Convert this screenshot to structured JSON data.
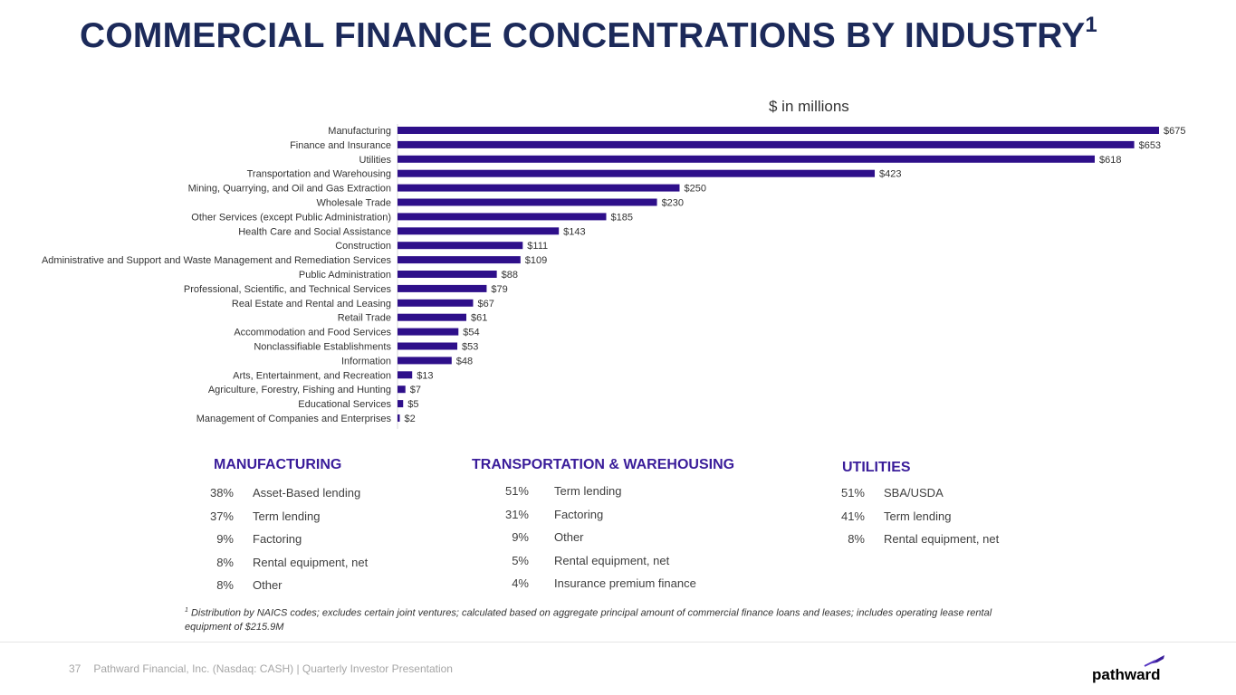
{
  "page": {
    "title": "COMMERCIAL FINANCE CONCENTRATIONS BY INDUSTRY",
    "title_sup": "1",
    "units_label": "$ in millions"
  },
  "chart_data": {
    "type": "bar",
    "orientation": "horizontal",
    "title": "",
    "units": "$ in millions",
    "categories": [
      "Manufacturing",
      "Finance and Insurance",
      "Utilities",
      "Transportation and Warehousing",
      "Mining, Quarrying, and Oil and Gas Extraction",
      "Wholesale Trade",
      "Other Services (except Public Administration)",
      "Health Care and Social Assistance",
      "Construction",
      "Administrative and Support and Waste Management and Remediation Services",
      "Public Administration",
      "Professional, Scientific, and Technical Services",
      "Real Estate and Rental and Leasing",
      "Retail Trade",
      "Accommodation and Food Services",
      "Nonclassifiable Establishments",
      "Information",
      "Arts, Entertainment, and Recreation",
      "Agriculture, Forestry, Fishing and Hunting",
      "Educational Services",
      "Management of Companies and Enterprises"
    ],
    "values": [
      675,
      653,
      618,
      423,
      250,
      230,
      185,
      143,
      111,
      109,
      88,
      79,
      67,
      61,
      54,
      53,
      48,
      13,
      7,
      5,
      2
    ],
    "value_labels": [
      "$675",
      "$653",
      "$618",
      "$423",
      "$250",
      "$230",
      "$185",
      "$143",
      "$111",
      "$109",
      "$88",
      "$79",
      "$67",
      "$61",
      "$54",
      "$53",
      "$48",
      "$13",
      "$7",
      "$5",
      "$2"
    ],
    "xlim": [
      0,
      675
    ],
    "bar_color": "#2e0f8a"
  },
  "breakdowns": {
    "manufacturing": {
      "title": "MANUFACTURING",
      "rows": [
        {
          "pct": "38%",
          "label": "Asset-Based lending"
        },
        {
          "pct": "37%",
          "label": "Term lending"
        },
        {
          "pct": "9%",
          "label": "Factoring"
        },
        {
          "pct": "8%",
          "label": "Rental equipment, net"
        },
        {
          "pct": "8%",
          "label": "Other"
        }
      ]
    },
    "transportation": {
      "title": "TRANSPORTATION & WAREHOUSING",
      "rows": [
        {
          "pct": "51%",
          "label": "Term lending"
        },
        {
          "pct": "31%",
          "label": "Factoring"
        },
        {
          "pct": "9%",
          "label": "Other"
        },
        {
          "pct": "5%",
          "label": "Rental equipment, net"
        },
        {
          "pct": "4%",
          "label": "Insurance premium finance"
        }
      ]
    },
    "utilities": {
      "title": "UTILITIES",
      "rows": [
        {
          "pct": "51%",
          "label": "SBA/USDA"
        },
        {
          "pct": "41%",
          "label": "Term lending"
        },
        {
          "pct": "8%",
          "label": "Rental equipment, net"
        }
      ]
    }
  },
  "footnote": {
    "marker": "1",
    "text": "Distribution by NAICS codes; excludes certain joint ventures; calculated based on aggregate principal amount of commercial finance loans and leases; includes operating lease rental equipment of $215.9M"
  },
  "footer": {
    "page_number": "37",
    "text": "Pathward Financial, Inc. (Nasdaq: CASH) | Quarterly Investor Presentation",
    "logo_text": "pathward"
  },
  "colors": {
    "title": "#1c2a5a",
    "section_heading": "#3a1d9a",
    "bar": "#2e0f8a"
  }
}
